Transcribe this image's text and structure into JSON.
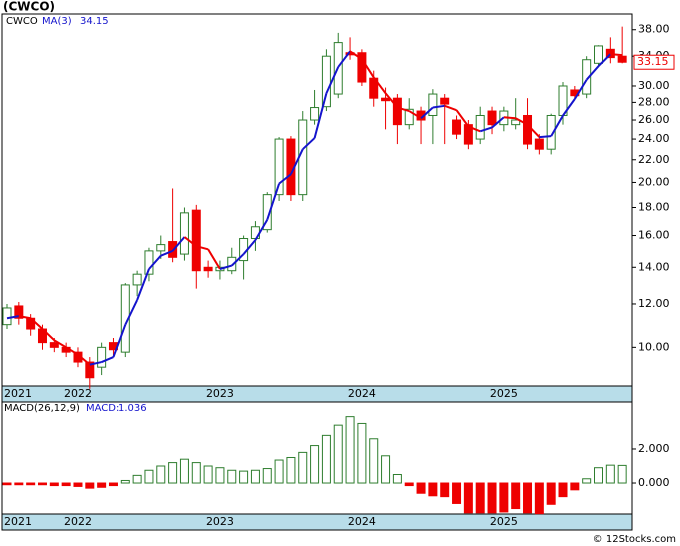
{
  "footer": "© 12Stocks.com",
  "chart_data": [
    {
      "type": "candlestick",
      "title": "(CWCO)",
      "symbol": "CWCO",
      "log_scale": true,
      "categories": [
        "2021",
        null,
        null,
        null,
        null,
        null,
        "2022",
        null,
        null,
        null,
        null,
        null,
        null,
        null,
        null,
        null,
        null,
        null,
        "2023",
        null,
        null,
        null,
        null,
        null,
        null,
        null,
        null,
        null,
        null,
        null,
        "2024",
        null,
        null,
        null,
        null,
        null,
        null,
        null,
        null,
        null,
        null,
        null,
        "2025",
        null,
        null,
        null,
        null,
        null,
        null,
        null,
        null,
        null,
        null
      ],
      "open": [
        11.0,
        11.9,
        11.3,
        10.8,
        10.2,
        10.0,
        9.8,
        9.4,
        9.2,
        10.2,
        9.8,
        13.0,
        13.6,
        15.0,
        15.6,
        14.8,
        17.8,
        14.0,
        13.8,
        13.8,
        14.4,
        15.8,
        16.4,
        19.0,
        24.0,
        19.0,
        26.0,
        27.5,
        29.0,
        34.5,
        34.5,
        31.0,
        28.5,
        28.5,
        25.5,
        27.0,
        26.5,
        28.5,
        26.0,
        25.5,
        24.0,
        27.0,
        25.5,
        25.5,
        26.5,
        24.0,
        23.0,
        26.5,
        29.5,
        29.0,
        33.0,
        35.0,
        34.0
      ],
      "high": [
        12.0,
        12.1,
        11.5,
        11.0,
        10.4,
        10.2,
        10.0,
        9.6,
        10.2,
        10.4,
        13.1,
        13.8,
        15.2,
        16.0,
        19.5,
        18.0,
        18.2,
        14.4,
        14.4,
        15.2,
        16.0,
        17.0,
        19.2,
        24.2,
        24.3,
        27.0,
        29.5,
        35.0,
        37.5,
        36.8,
        35.0,
        32.0,
        29.8,
        29.0,
        28.5,
        27.5,
        29.6,
        29.0,
        26.5,
        26.0,
        27.5,
        27.5,
        27.5,
        28.5,
        28.5,
        24.5,
        26.7,
        30.5,
        30.0,
        34.0,
        35.6,
        36.8,
        38.5
      ],
      "low": [
        10.8,
        11.0,
        10.5,
        9.9,
        9.8,
        9.6,
        9.2,
        8.4,
        8.9,
        9.6,
        9.6,
        12.4,
        13.2,
        14.5,
        14.3,
        14.4,
        12.8,
        13.4,
        13.3,
        13.6,
        13.3,
        15.0,
        16.2,
        18.5,
        18.5,
        18.5,
        25.5,
        27.0,
        28.5,
        33.5,
        30.0,
        27.5,
        25.0,
        23.5,
        25.0,
        23.5,
        23.5,
        23.5,
        24.0,
        23.0,
        23.5,
        24.5,
        24.8,
        25.0,
        23.0,
        22.5,
        22.5,
        25.5,
        28.5,
        28.5,
        32.5,
        33.0,
        33.0
      ],
      "close": [
        11.8,
        11.3,
        10.8,
        10.2,
        10.0,
        9.8,
        9.4,
        8.8,
        10.0,
        9.9,
        13.0,
        13.6,
        15.0,
        15.4,
        14.6,
        17.6,
        13.8,
        13.8,
        14.0,
        14.6,
        15.8,
        16.6,
        19.0,
        24.0,
        19.0,
        26.0,
        27.4,
        34.0,
        36.0,
        34.2,
        30.5,
        28.5,
        28.2,
        25.5,
        27.2,
        26.0,
        29.0,
        27.8,
        24.5,
        23.5,
        26.5,
        25.5,
        27.0,
        26.0,
        23.5,
        23.0,
        26.5,
        30.0,
        28.8,
        33.5,
        35.5,
        33.8,
        33.15
      ],
      "up_color": "#2e7d2e",
      "down_color": "#ee0000",
      "ma": {
        "name": "MA(3)",
        "up_color": "#1414cc",
        "down_color": "#ee0000",
        "values": [
          11.3,
          11.4,
          11.3,
          10.8,
          10.3,
          10.0,
          9.7,
          9.3,
          9.4,
          9.6,
          11.0,
          12.2,
          13.9,
          14.7,
          15.0,
          15.9,
          15.3,
          15.1,
          13.9,
          14.1,
          14.8,
          15.7,
          17.1,
          19.9,
          20.7,
          23.0,
          24.1,
          29.1,
          32.5,
          34.7,
          33.6,
          31.1,
          29.1,
          27.4,
          27.0,
          26.2,
          27.4,
          27.6,
          27.1,
          25.3,
          24.8,
          25.2,
          26.3,
          26.2,
          25.5,
          24.2,
          24.3,
          26.5,
          28.4,
          30.8,
          32.6,
          34.3,
          34.15
        ]
      },
      "ylim": [
        8.5,
        40.6
      ],
      "yticks": [
        {
          "value": 38,
          "label": "38.00"
        },
        {
          "value": 34,
          "label": "34.00"
        },
        {
          "value": 30,
          "label": "30.00"
        },
        {
          "value": 28,
          "label": "28.00"
        },
        {
          "value": 26,
          "label": "26.00"
        },
        {
          "value": 24,
          "label": "24.00"
        },
        {
          "value": 22,
          "label": "22.00"
        },
        {
          "value": 20,
          "label": "20.00"
        },
        {
          "value": 18,
          "label": "18.00"
        },
        {
          "value": 16,
          "label": "16.00"
        },
        {
          "value": 14,
          "label": "14.00"
        },
        {
          "value": 12,
          "label": "12.00"
        },
        {
          "value": 10,
          "label": "10.00"
        }
      ]
    },
    {
      "type": "bar",
      "title": "MACD(26,12,9)",
      "current_label": "MACD:",
      "categories": [
        "2021",
        null,
        null,
        null,
        null,
        null,
        "2022",
        null,
        null,
        null,
        null,
        null,
        null,
        null,
        null,
        null,
        null,
        null,
        "2023",
        null,
        null,
        null,
        null,
        null,
        null,
        null,
        null,
        null,
        null,
        null,
        "2024",
        null,
        null,
        null,
        null,
        null,
        null,
        null,
        null,
        null,
        null,
        null,
        "2025",
        null,
        null,
        null,
        null,
        null,
        null,
        null,
        null,
        null,
        null
      ],
      "values": [
        -0.1,
        -0.1,
        -0.1,
        -0.1,
        -0.15,
        -0.15,
        -0.2,
        -0.3,
        -0.25,
        -0.15,
        0.15,
        0.45,
        0.75,
        1.0,
        1.2,
        1.4,
        1.2,
        1.0,
        0.9,
        0.75,
        0.7,
        0.75,
        0.85,
        1.35,
        1.5,
        1.8,
        2.2,
        2.8,
        3.4,
        3.9,
        3.5,
        2.6,
        1.6,
        0.5,
        -0.15,
        -0.6,
        -0.75,
        -0.8,
        -1.2,
        -1.75,
        -1.75,
        -1.75,
        -1.7,
        -1.5,
        -1.75,
        -1.8,
        -1.25,
        -0.8,
        -0.4,
        0.25,
        0.9,
        1.05,
        1.036
      ],
      "up_color": "#2e7d2e",
      "down_color": "#ee0000",
      "ylim": [
        -1.82,
        4.76
      ],
      "yticks": [
        {
          "value": 2,
          "label": "2.000"
        },
        {
          "value": 0,
          "label": "0.000"
        }
      ]
    }
  ]
}
